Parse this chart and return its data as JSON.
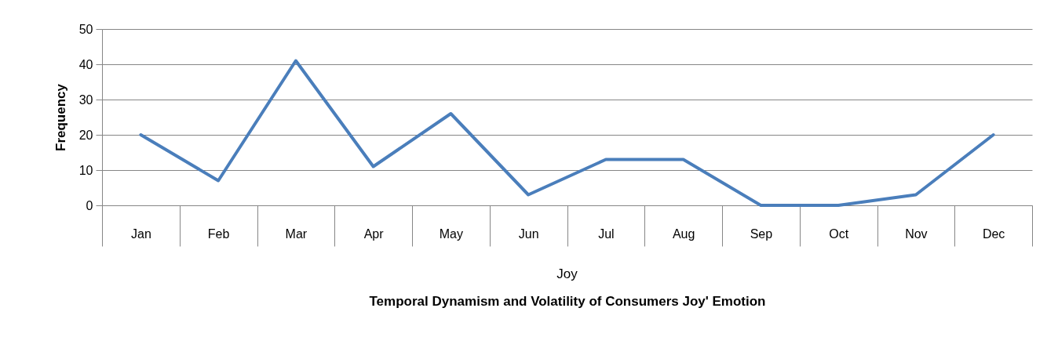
{
  "chart_data": {
    "type": "line",
    "xlabel": "Temporal Dynamism and Volatility of Consumers Joy' Emotion",
    "ylabel": "Frequency",
    "annotations": [
      "Joy"
    ],
    "categories": [
      "Jan",
      "Feb",
      "Mar",
      "Apr",
      "May",
      "Jun",
      "Jul",
      "Aug",
      "Sep",
      "Oct",
      "Nov",
      "Dec"
    ],
    "series": [
      {
        "color": "#4a7ebb",
        "values": [
          20,
          7,
          41,
          11,
          26,
          3,
          13,
          13,
          0,
          0,
          3,
          20
        ]
      }
    ],
    "ylim": [
      0,
      50
    ],
    "yticks": [
      0,
      10,
      20,
      30,
      40,
      50
    ],
    "grid": "y"
  }
}
